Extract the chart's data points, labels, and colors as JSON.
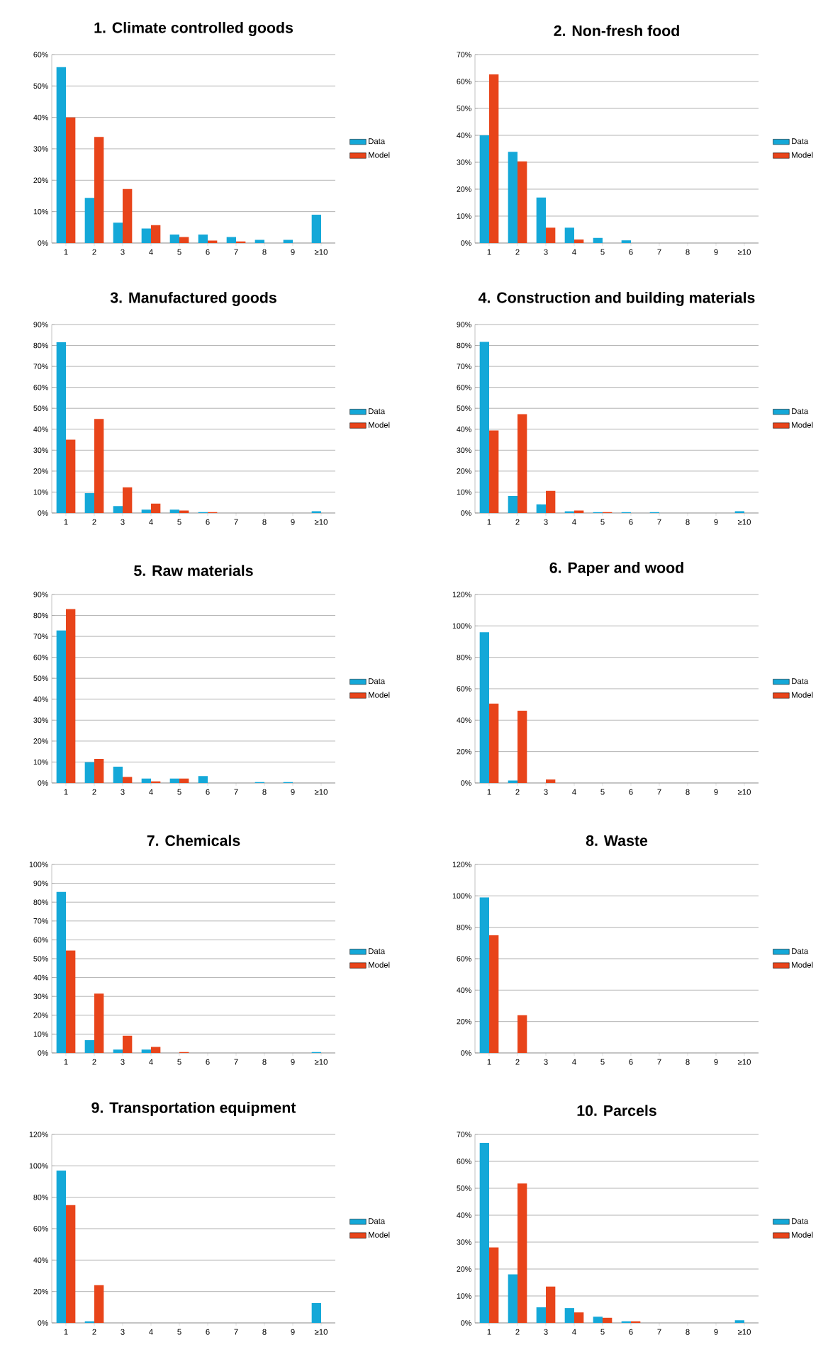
{
  "chart_data": [
    {
      "type": "bar",
      "title": "1. Climate controlled goods",
      "categories": [
        "1",
        "2",
        "3",
        "4",
        "5",
        "6",
        "7",
        "8",
        "9",
        "≥10"
      ],
      "ylim": [
        0,
        60
      ],
      "yticks": [
        {
          "value": 0,
          "label": "0%"
        },
        {
          "value": 10,
          "label": "10%"
        },
        {
          "value": 20,
          "label": "20%"
        },
        {
          "value": 30,
          "label": "30%"
        },
        {
          "value": 40,
          "label": "40%"
        },
        {
          "value": 50,
          "label": "50%"
        },
        {
          "value": 60,
          "label": "60%"
        }
      ],
      "grid": "y",
      "legend": "right",
      "series": [
        {
          "name": "Data",
          "color": "#14a8d8",
          "values": [
            56,
            14.4,
            6.5,
            4.6,
            2.7,
            2.7,
            1.9,
            1,
            1,
            9
          ]
        },
        {
          "name": "Model",
          "color": "#e8441a",
          "values": [
            40,
            33.8,
            17.2,
            5.7,
            1.9,
            0.8,
            0.5,
            0,
            0,
            0
          ]
        }
      ]
    },
    {
      "type": "bar",
      "title": "2. Non-fresh food",
      "categories": [
        "1",
        "2",
        "3",
        "4",
        "5",
        "6",
        "7",
        "8",
        "9",
        "≥10"
      ],
      "ylim": [
        0,
        70
      ],
      "yticks": [
        {
          "value": 0,
          "label": "0%"
        },
        {
          "value": 10,
          "label": "10%"
        },
        {
          "value": 20,
          "label": "20%"
        },
        {
          "value": 30,
          "label": "30%"
        },
        {
          "value": 40,
          "label": "40%"
        },
        {
          "value": 50,
          "label": "50%"
        },
        {
          "value": 60,
          "label": "60%"
        },
        {
          "value": 70,
          "label": "70%"
        }
      ],
      "grid": "y",
      "legend": "right",
      "series": [
        {
          "name": "Data",
          "color": "#14a8d8",
          "values": [
            40,
            33.9,
            16.9,
            5.7,
            1.9,
            1,
            0,
            0,
            0,
            0
          ]
        },
        {
          "name": "Model",
          "color": "#e8441a",
          "values": [
            62.6,
            30.3,
            5.7,
            1.3,
            0,
            0,
            0,
            0,
            0,
            0
          ]
        }
      ]
    },
    {
      "type": "bar",
      "title": "3. Manufactured goods",
      "categories": [
        "1",
        "2",
        "3",
        "4",
        "5",
        "6",
        "7",
        "8",
        "9",
        "≥10"
      ],
      "ylim": [
        0,
        90
      ],
      "yticks": [
        {
          "value": 0,
          "label": "0%"
        },
        {
          "value": 10,
          "label": "10%"
        },
        {
          "value": 20,
          "label": "20%"
        },
        {
          "value": 30,
          "label": "30%"
        },
        {
          "value": 40,
          "label": "40%"
        },
        {
          "value": 50,
          "label": "50%"
        },
        {
          "value": 60,
          "label": "60%"
        },
        {
          "value": 70,
          "label": "70%"
        },
        {
          "value": 80,
          "label": "80%"
        },
        {
          "value": 90,
          "label": "90%"
        }
      ],
      "grid": "y",
      "legend": "right",
      "series": [
        {
          "name": "Data",
          "color": "#14a8d8",
          "values": [
            81.5,
            9.5,
            3.3,
            1.6,
            1.6,
            0.4,
            0,
            0,
            0,
            0.8
          ]
        },
        {
          "name": "Model",
          "color": "#e8441a",
          "values": [
            35,
            44.9,
            12.3,
            4.5,
            1.2,
            0.4,
            0,
            0,
            0,
            0
          ]
        }
      ]
    },
    {
      "type": "bar",
      "title": "4. Construction and building materials",
      "categories": [
        "1",
        "2",
        "3",
        "4",
        "5",
        "6",
        "7",
        "8",
        "9",
        "≥10"
      ],
      "ylim": [
        0,
        90
      ],
      "yticks": [
        {
          "value": 0,
          "label": "0%"
        },
        {
          "value": 10,
          "label": "10%"
        },
        {
          "value": 20,
          "label": "20%"
        },
        {
          "value": 30,
          "label": "30%"
        },
        {
          "value": 40,
          "label": "40%"
        },
        {
          "value": 50,
          "label": "50%"
        },
        {
          "value": 60,
          "label": "60%"
        },
        {
          "value": 70,
          "label": "70%"
        },
        {
          "value": 80,
          "label": "80%"
        },
        {
          "value": 90,
          "label": "90%"
        }
      ],
      "grid": "y",
      "legend": "right",
      "series": [
        {
          "name": "Data",
          "color": "#14a8d8",
          "values": [
            81.7,
            8.1,
            4.1,
            0.8,
            0.4,
            0.4,
            0.4,
            0,
            0,
            0.8
          ]
        },
        {
          "name": "Model",
          "color": "#e8441a",
          "values": [
            39.4,
            47.2,
            10.6,
            1.2,
            0.4,
            0,
            0,
            0,
            0,
            0
          ]
        }
      ]
    },
    {
      "type": "bar",
      "title": "5. Raw materials",
      "categories": [
        "1",
        "2",
        "3",
        "4",
        "5",
        "6",
        "7",
        "8",
        "9",
        "≥10"
      ],
      "ylim": [
        0,
        90
      ],
      "yticks": [
        {
          "value": 0,
          "label": "0%"
        },
        {
          "value": 10,
          "label": "10%"
        },
        {
          "value": 20,
          "label": "20%"
        },
        {
          "value": 30,
          "label": "30%"
        },
        {
          "value": 40,
          "label": "40%"
        },
        {
          "value": 50,
          "label": "50%"
        },
        {
          "value": 60,
          "label": "60%"
        },
        {
          "value": 70,
          "label": "70%"
        },
        {
          "value": 80,
          "label": "80%"
        },
        {
          "value": 90,
          "label": "90%"
        }
      ],
      "grid": "y",
      "legend": "right",
      "series": [
        {
          "name": "Data",
          "color": "#14a8d8",
          "values": [
            72.8,
            9.9,
            7.8,
            2.1,
            2.1,
            3.3,
            0,
            0.4,
            0.4,
            0
          ]
        },
        {
          "name": "Model",
          "color": "#e8441a",
          "values": [
            83.1,
            11.5,
            2.9,
            0.8,
            2.1,
            0,
            0,
            0,
            0,
            0
          ]
        }
      ]
    },
    {
      "type": "bar",
      "title": "6. Paper and wood",
      "categories": [
        "1",
        "2",
        "3",
        "4",
        "5",
        "6",
        "7",
        "8",
        "9",
        "≥10"
      ],
      "ylim": [
        0,
        120
      ],
      "yticks": [
        {
          "value": 0,
          "label": "0%"
        },
        {
          "value": 20,
          "label": "20%"
        },
        {
          "value": 40,
          "label": "40%"
        },
        {
          "value": 60,
          "label": "60%"
        },
        {
          "value": 80,
          "label": "80%"
        },
        {
          "value": 100,
          "label": "100%"
        },
        {
          "value": 120,
          "label": "120%"
        }
      ],
      "grid": "y",
      "legend": "right",
      "series": [
        {
          "name": "Data",
          "color": "#14a8d8",
          "values": [
            96,
            1.6,
            0,
            0,
            0,
            0,
            0,
            0,
            0,
            0
          ]
        },
        {
          "name": "Model",
          "color": "#e8441a",
          "values": [
            50.5,
            46,
            2.2,
            0,
            0,
            0,
            0,
            0,
            0,
            0
          ]
        }
      ]
    },
    {
      "type": "bar",
      "title": "7. Chemicals",
      "categories": [
        "1",
        "2",
        "3",
        "4",
        "5",
        "6",
        "7",
        "8",
        "9",
        "≥10"
      ],
      "ylim": [
        0,
        100
      ],
      "yticks": [
        {
          "value": 0,
          "label": "0%"
        },
        {
          "value": 10,
          "label": "10%"
        },
        {
          "value": 20,
          "label": "20%"
        },
        {
          "value": 30,
          "label": "30%"
        },
        {
          "value": 40,
          "label": "40%"
        },
        {
          "value": 50,
          "label": "50%"
        },
        {
          "value": 60,
          "label": "60%"
        },
        {
          "value": 70,
          "label": "70%"
        },
        {
          "value": 80,
          "label": "80%"
        },
        {
          "value": 90,
          "label": "90%"
        },
        {
          "value": 100,
          "label": "100%"
        }
      ],
      "grid": "y",
      "legend": "right",
      "series": [
        {
          "name": "Data",
          "color": "#14a8d8",
          "values": [
            85.4,
            6.8,
            1.8,
            1.8,
            0,
            0,
            0,
            0,
            0,
            0.5
          ]
        },
        {
          "name": "Model",
          "color": "#e8441a",
          "values": [
            54.3,
            31.5,
            9.1,
            3.2,
            0.5,
            0,
            0,
            0,
            0,
            0
          ]
        }
      ]
    },
    {
      "type": "bar",
      "title": "8. Waste",
      "categories": [
        "1",
        "2",
        "3",
        "4",
        "5",
        "6",
        "7",
        "8",
        "9",
        "≥10"
      ],
      "ylim": [
        0,
        120
      ],
      "yticks": [
        {
          "value": 0,
          "label": "0%"
        },
        {
          "value": 20,
          "label": "20%"
        },
        {
          "value": 40,
          "label": "40%"
        },
        {
          "value": 60,
          "label": "60%"
        },
        {
          "value": 80,
          "label": "80%"
        },
        {
          "value": 100,
          "label": "100%"
        },
        {
          "value": 120,
          "label": "120%"
        }
      ],
      "grid": "y",
      "legend": "right",
      "series": [
        {
          "name": "Data",
          "color": "#14a8d8",
          "values": [
            99,
            0,
            0,
            0,
            0,
            0,
            0,
            0,
            0,
            0
          ]
        },
        {
          "name": "Model",
          "color": "#e8441a",
          "values": [
            75,
            24,
            0,
            0,
            0,
            0,
            0,
            0,
            0,
            0
          ]
        }
      ]
    },
    {
      "type": "bar",
      "title": "9. Transportation equipment",
      "categories": [
        "1",
        "2",
        "3",
        "4",
        "5",
        "6",
        "7",
        "8",
        "9",
        "≥10"
      ],
      "ylim": [
        0,
        120
      ],
      "yticks": [
        {
          "value": 0,
          "label": "0%"
        },
        {
          "value": 20,
          "label": "20%"
        },
        {
          "value": 40,
          "label": "40%"
        },
        {
          "value": 60,
          "label": "60%"
        },
        {
          "value": 80,
          "label": "80%"
        },
        {
          "value": 100,
          "label": "100%"
        },
        {
          "value": 120,
          "label": "120%"
        }
      ],
      "grid": "y",
      "legend": "right",
      "series": [
        {
          "name": "Data",
          "color": "#14a8d8",
          "values": [
            97,
            1,
            0,
            0,
            0,
            0,
            0,
            0,
            0,
            12.6
          ]
        },
        {
          "name": "Model",
          "color": "#e8441a",
          "values": [
            75,
            24,
            0,
            0,
            0,
            0,
            0,
            0,
            0,
            0
          ]
        }
      ]
    },
    {
      "type": "bar",
      "title": "10. Parcels",
      "categories": [
        "1",
        "2",
        "3",
        "4",
        "5",
        "6",
        "7",
        "8",
        "9",
        "≥10"
      ],
      "ylim": [
        0,
        70
      ],
      "yticks": [
        {
          "value": 0,
          "label": "0%"
        },
        {
          "value": 10,
          "label": "10%"
        },
        {
          "value": 20,
          "label": "20%"
        },
        {
          "value": 30,
          "label": "30%"
        },
        {
          "value": 40,
          "label": "40%"
        },
        {
          "value": 50,
          "label": "50%"
        },
        {
          "value": 60,
          "label": "60%"
        },
        {
          "value": 70,
          "label": "70%"
        }
      ],
      "grid": "y",
      "legend": "right",
      "series": [
        {
          "name": "Data",
          "color": "#14a8d8",
          "values": [
            66.9,
            18,
            5.8,
            5.5,
            2.3,
            0.6,
            0,
            0,
            0,
            1
          ]
        },
        {
          "name": "Model",
          "color": "#e8441a",
          "values": [
            28,
            51.8,
            13.5,
            3.9,
            1.9,
            0.6,
            0,
            0,
            0,
            0
          ]
        }
      ]
    }
  ]
}
